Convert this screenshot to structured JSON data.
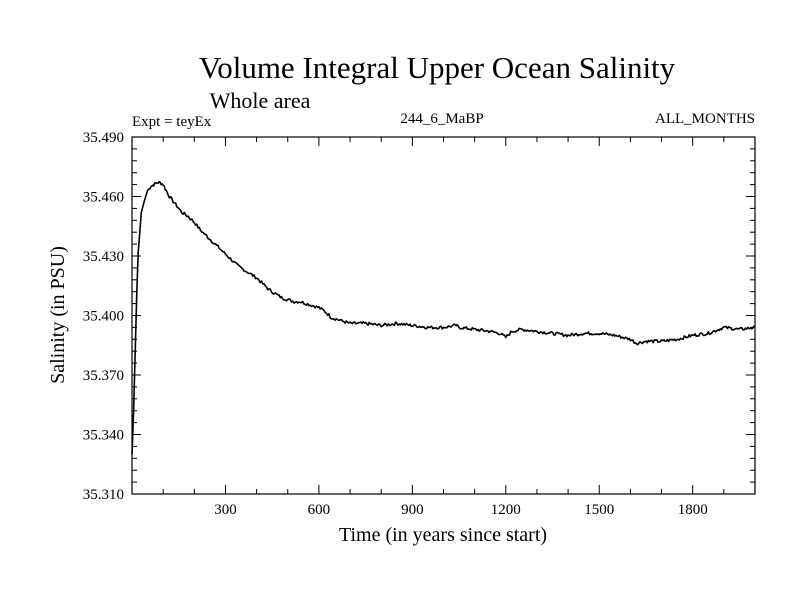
{
  "chart_data": {
    "type": "line",
    "title": "Volume Integral Upper Ocean Salinity",
    "subtitle": "Whole area",
    "left_label": "Expt = teyEx",
    "center_label": "244_6_MaBP",
    "right_label": "ALL_MONTHS",
    "xlabel": "Time (in years since start)",
    "ylabel": "Salinity (in PSU)",
    "xlim": [
      0,
      2000
    ],
    "ylim": [
      35.31,
      35.49
    ],
    "x_ticks": [
      300,
      600,
      900,
      1200,
      1500,
      1800
    ],
    "x_tick_labels": [
      "300",
      "600",
      "900",
      "1200",
      "1500",
      "1800"
    ],
    "y_ticks": [
      35.31,
      35.34,
      35.37,
      35.4,
      35.43,
      35.46,
      35.49
    ],
    "y_tick_labels": [
      "35.310",
      "35.340",
      "35.370",
      "35.400",
      "35.430",
      "35.460",
      "35.490"
    ],
    "grid": false,
    "series": [
      {
        "name": "Salinity",
        "color": "#000000",
        "x": [
          0,
          5,
          10,
          15,
          20,
          30,
          40,
          50,
          60,
          70,
          80,
          90,
          100,
          110,
          120,
          140,
          160,
          180,
          200,
          220,
          240,
          260,
          280,
          300,
          320,
          340,
          360,
          380,
          400,
          420,
          440,
          460,
          480,
          500,
          520,
          540,
          560,
          580,
          600,
          620,
          640,
          660,
          680,
          700,
          750,
          800,
          850,
          900,
          950,
          1000,
          1040,
          1050,
          1100,
          1150,
          1180,
          1200,
          1220,
          1250,
          1300,
          1350,
          1400,
          1450,
          1500,
          1550,
          1600,
          1620,
          1650,
          1700,
          1750,
          1800,
          1850,
          1900,
          1950,
          2000
        ],
        "values": [
          35.33,
          35.352,
          35.38,
          35.41,
          35.432,
          35.452,
          35.458,
          35.463,
          35.465,
          35.466,
          35.467,
          35.467,
          35.466,
          35.463,
          35.46,
          35.456,
          35.452,
          35.45,
          35.447,
          35.443,
          35.44,
          35.437,
          35.434,
          35.431,
          35.428,
          35.425,
          35.423,
          35.421,
          35.419,
          35.416,
          35.413,
          35.411,
          35.409,
          35.408,
          35.407,
          35.407,
          35.406,
          35.405,
          35.404,
          35.402,
          35.399,
          35.398,
          35.397,
          35.396,
          35.396,
          35.395,
          35.396,
          35.395,
          35.394,
          35.394,
          35.395,
          35.394,
          35.393,
          35.392,
          35.391,
          35.389,
          35.392,
          35.393,
          35.392,
          35.391,
          35.39,
          35.391,
          35.391,
          35.39,
          35.388,
          35.386,
          35.387,
          35.387,
          35.388,
          35.39,
          35.391,
          35.394,
          35.393,
          35.394
        ]
      }
    ]
  }
}
